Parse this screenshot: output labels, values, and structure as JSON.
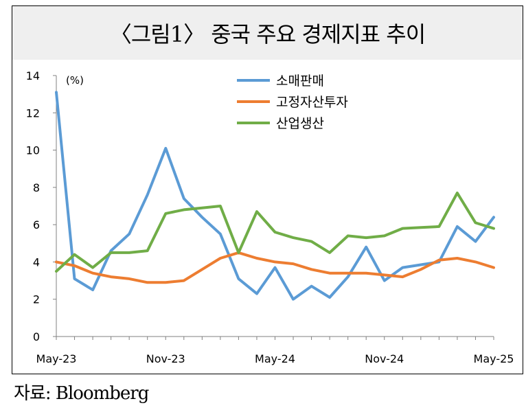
{
  "title": "〈그림1〉 중국 주요 경제지표 추이",
  "source": "자료: Bloomberg",
  "chart_data": {
    "type": "line",
    "unit_label": "(%)",
    "ylim": [
      0,
      14
    ],
    "yticks": [
      0,
      2,
      4,
      6,
      8,
      10,
      12,
      14
    ],
    "x": [
      "May-23",
      "Jun-23",
      "Jul-23",
      "Aug-23",
      "Sep-23",
      "Oct-23",
      "Nov-23",
      "Dec-23",
      "Jan-24",
      "Feb-24",
      "Mar-24",
      "Apr-24",
      "May-24",
      "Jun-24",
      "Jul-24",
      "Aug-24",
      "Sep-24",
      "Oct-24",
      "Nov-24",
      "Dec-24",
      "Jan-25",
      "Feb-25",
      "Mar-25",
      "Apr-25",
      "May-25"
    ],
    "x_tick_labels": [
      "May-23",
      "Nov-23",
      "May-24",
      "Nov-24",
      "May-25"
    ],
    "x_tick_indices": [
      0,
      6,
      12,
      18,
      24
    ],
    "legend_position": "top-center",
    "grid": false,
    "series": [
      {
        "name": "소매판매",
        "color": "#5b9bd5",
        "values": [
          13.1,
          3.1,
          2.5,
          4.6,
          5.5,
          7.6,
          10.1,
          7.4,
          6.4,
          5.5,
          3.1,
          2.3,
          3.7,
          2.0,
          2.7,
          2.1,
          3.2,
          4.8,
          3.0,
          3.7,
          3.85,
          4.0,
          5.9,
          5.1,
          6.4
        ]
      },
      {
        "name": "고정자산투자",
        "color": "#ed7d31",
        "values": [
          4.0,
          3.8,
          3.4,
          3.2,
          3.1,
          2.9,
          2.9,
          3.0,
          3.6,
          4.2,
          4.5,
          4.2,
          4.0,
          3.9,
          3.6,
          3.4,
          3.4,
          3.4,
          3.3,
          3.2,
          3.6,
          4.1,
          4.2,
          4.0,
          3.7
        ]
      },
      {
        "name": "산업생산",
        "color": "#70ad47",
        "values": [
          3.5,
          4.4,
          3.7,
          4.5,
          4.5,
          4.6,
          6.6,
          6.8,
          6.9,
          7.0,
          4.5,
          6.7,
          5.6,
          5.3,
          5.1,
          4.5,
          5.4,
          5.3,
          5.4,
          5.8,
          5.85,
          5.9,
          7.7,
          6.1,
          5.8
        ]
      }
    ]
  }
}
